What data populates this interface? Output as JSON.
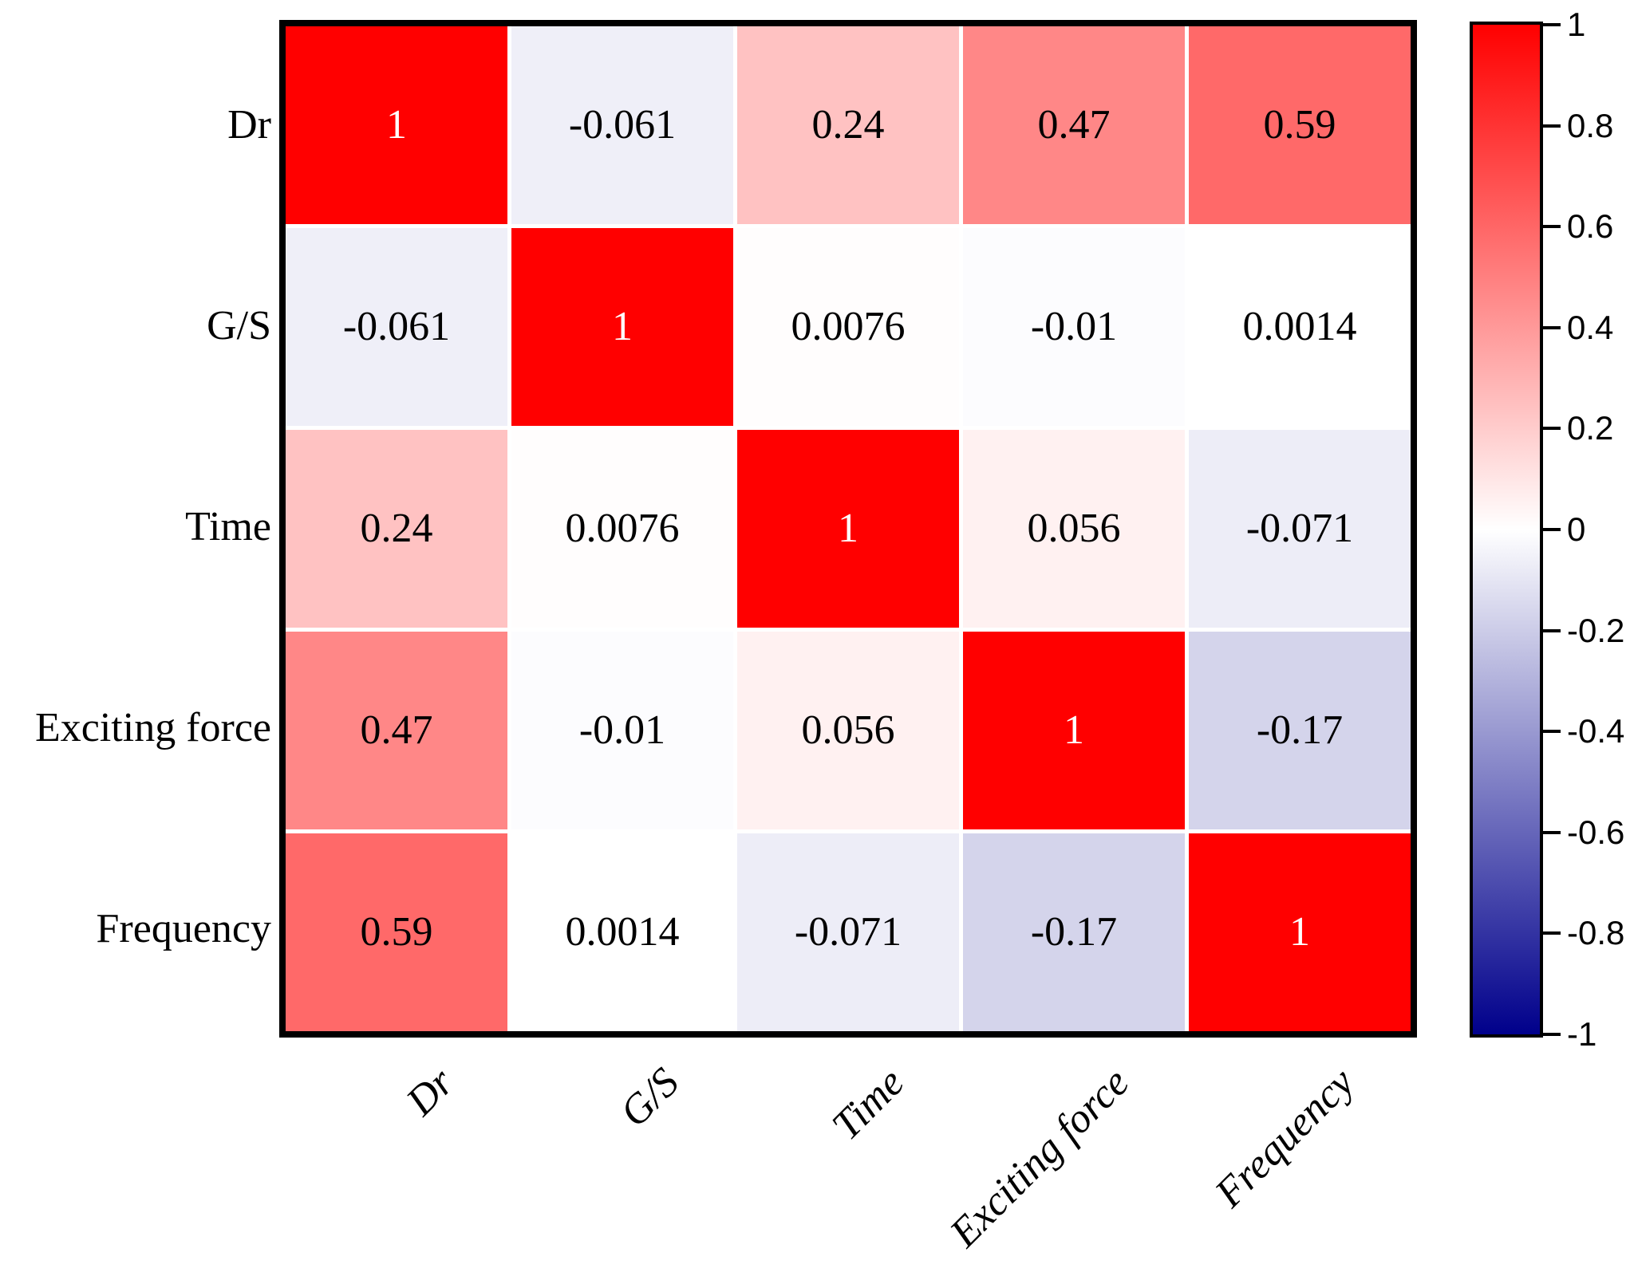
{
  "chart_data": {
    "type": "heatmap",
    "title": "",
    "description": "Pearson correlation matrix heatmap",
    "variables": [
      "Dr",
      "G/S",
      "Time",
      "Exciting force",
      "Frequency"
    ],
    "x_tick_labels": [
      "Dr",
      "G/S",
      "Time",
      "Exciting force",
      "Frequency"
    ],
    "y_tick_labels": [
      "Dr",
      "G/S",
      "Time",
      "Exciting force",
      "Frequency"
    ],
    "matrix": [
      [
        1,
        -0.061,
        0.24,
        0.47,
        0.59
      ],
      [
        -0.061,
        1,
        0.0076,
        -0.01,
        0.0014
      ],
      [
        0.24,
        0.0076,
        1,
        0.056,
        -0.071
      ],
      [
        0.47,
        -0.01,
        0.056,
        1,
        -0.17
      ],
      [
        0.59,
        0.0014,
        -0.071,
        -0.17,
        1
      ]
    ],
    "cell_labels": [
      [
        "1",
        "-0.061",
        "0.24",
        "0.47",
        "0.59"
      ],
      [
        "-0.061",
        "1",
        "0.0076",
        "-0.01",
        "0.0014"
      ],
      [
        "0.24",
        "0.0076",
        "1",
        "0.056",
        "-0.071"
      ],
      [
        "0.47",
        "-0.01",
        "0.056",
        "1",
        "-0.17"
      ],
      [
        "0.59",
        "0.0014",
        "-0.071",
        "-0.17",
        "1"
      ]
    ],
    "colorbar": {
      "position": "right",
      "min": -1,
      "max": 1,
      "tick_values": [
        1,
        0.8,
        0.6,
        0.4,
        0.2,
        0,
        -0.2,
        -0.4,
        -0.6,
        -0.8,
        -1
      ],
      "tick_labels": [
        "1",
        "0.8",
        "0.6",
        "0.4",
        "0.2",
        "0",
        "-0.2",
        "-0.4",
        "-0.6",
        "-0.8",
        "-1"
      ]
    },
    "colors": {
      "positive_max": "#ff0000",
      "zero": "#ffffff",
      "negative_min": "#00008b",
      "cell_text": "#000000",
      "diagonal_text": "#ffffff",
      "border": "#000000",
      "background": "#ffffff"
    },
    "grid": "white gaps between cells",
    "legend": "none"
  }
}
